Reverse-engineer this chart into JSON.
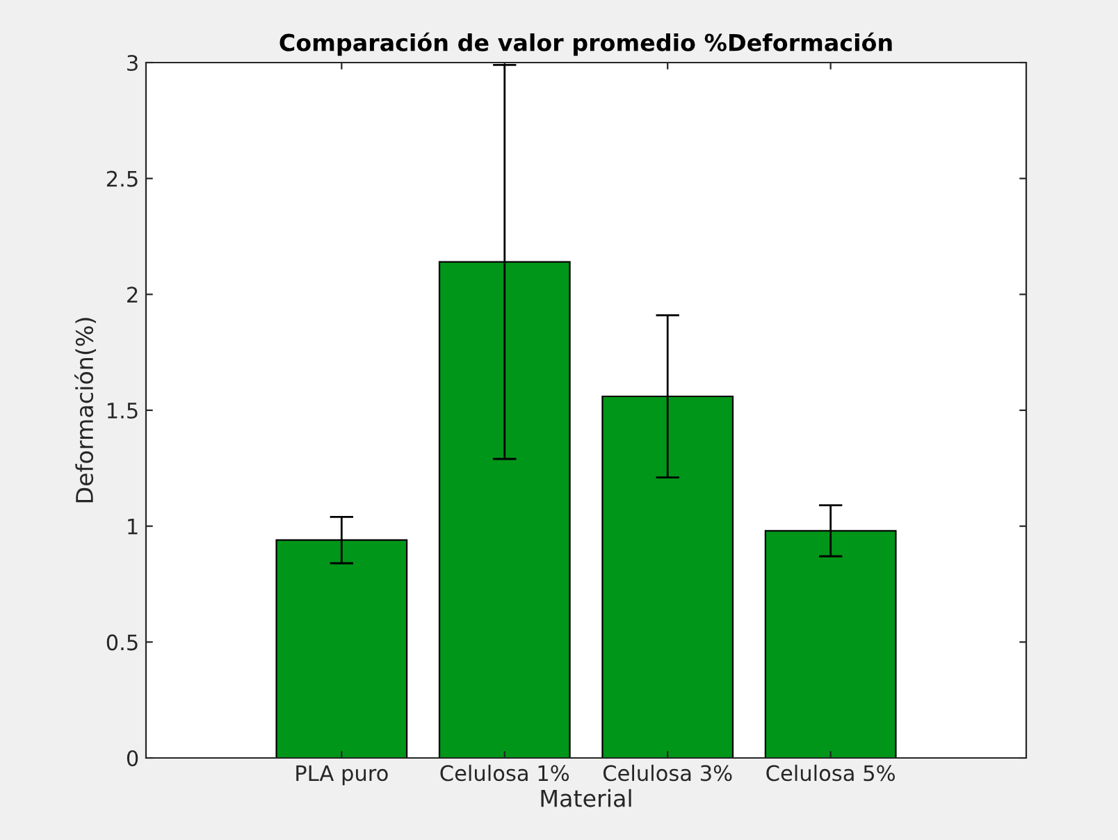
{
  "chart_data": {
    "type": "bar",
    "title": "Comparación de valor promedio %Deformación",
    "xlabel": "Material",
    "ylabel": "Deformación(%)",
    "categories": [
      "PLA puro",
      "Celulosa 1%",
      "Celulosa 3%",
      "Celulosa 5%"
    ],
    "values": [
      0.94,
      2.14,
      1.56,
      0.98
    ],
    "errors": [
      0.1,
      0.85,
      0.35,
      0.11
    ],
    "color": "#009619",
    "ylim": [
      0,
      3
    ],
    "yticks": [
      0,
      0.5,
      1,
      1.5,
      2,
      2.5,
      3
    ],
    "grid": false
  }
}
